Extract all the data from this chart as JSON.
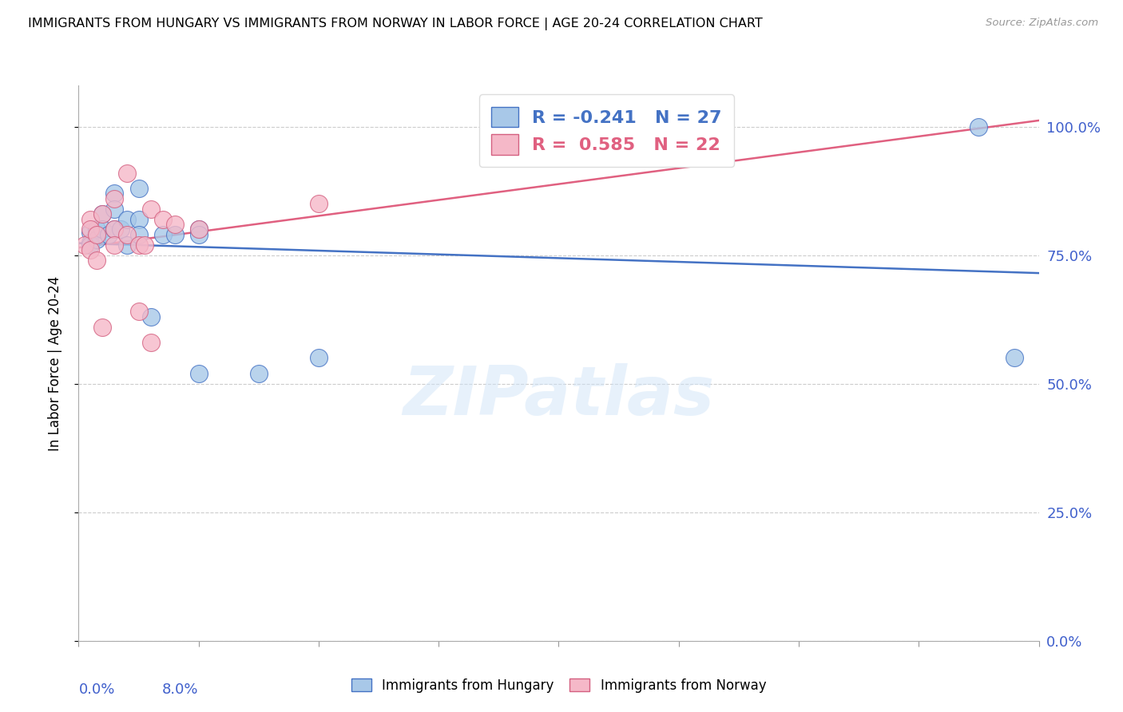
{
  "title": "IMMIGRANTS FROM HUNGARY VS IMMIGRANTS FROM NORWAY IN LABOR FORCE | AGE 20-24 CORRELATION CHART",
  "source": "Source: ZipAtlas.com",
  "ylabel": "In Labor Force | Age 20-24",
  "ytick_labels": [
    "0.0%",
    "25.0%",
    "50.0%",
    "75.0%",
    "100.0%"
  ],
  "ytick_values": [
    0.0,
    0.25,
    0.5,
    0.75,
    1.0
  ],
  "xlim": [
    0.0,
    8.0
  ],
  "ylim": [
    0.0,
    1.08
  ],
  "legend_r_hungary": "-0.241",
  "legend_n_hungary": "27",
  "legend_r_norway": "0.585",
  "legend_n_norway": "22",
  "watermark": "ZIPatlas",
  "hungary_color": "#a8c8e8",
  "norway_color": "#f5b8c8",
  "hungary_edge_color": "#4472c4",
  "norway_edge_color": "#d46080",
  "hungary_line_color": "#4472c4",
  "norway_line_color": "#e06080",
  "background_color": "#ffffff",
  "grid_color": "#cccccc",
  "tick_color": "#4060cc",
  "hungary_pts_x": [
    0.1,
    0.1,
    0.1,
    0.15,
    0.15,
    0.2,
    0.2,
    0.25,
    0.3,
    0.3,
    0.3,
    0.35,
    0.4,
    0.4,
    0.5,
    0.5,
    0.5,
    0.6,
    0.7,
    0.8,
    1.0,
    1.0,
    1.0,
    1.5,
    2.0,
    7.5,
    7.8
  ],
  "hungary_pts_y": [
    0.795,
    0.775,
    0.77,
    0.8,
    0.78,
    0.83,
    0.8,
    0.79,
    0.87,
    0.84,
    0.8,
    0.8,
    0.82,
    0.77,
    0.88,
    0.82,
    0.79,
    0.63,
    0.79,
    0.79,
    0.8,
    0.52,
    0.79,
    0.52,
    0.55,
    1.0,
    0.55
  ],
  "norway_pts_x": [
    0.05,
    0.1,
    0.1,
    0.1,
    0.15,
    0.15,
    0.2,
    0.2,
    0.3,
    0.3,
    0.3,
    0.4,
    0.4,
    0.5,
    0.5,
    0.55,
    0.6,
    0.6,
    0.7,
    0.8,
    1.0,
    2.0
  ],
  "norway_pts_y": [
    0.77,
    0.82,
    0.8,
    0.76,
    0.79,
    0.74,
    0.83,
    0.61,
    0.86,
    0.8,
    0.77,
    0.91,
    0.79,
    0.77,
    0.64,
    0.77,
    0.84,
    0.58,
    0.82,
    0.81,
    0.8,
    0.85
  ]
}
